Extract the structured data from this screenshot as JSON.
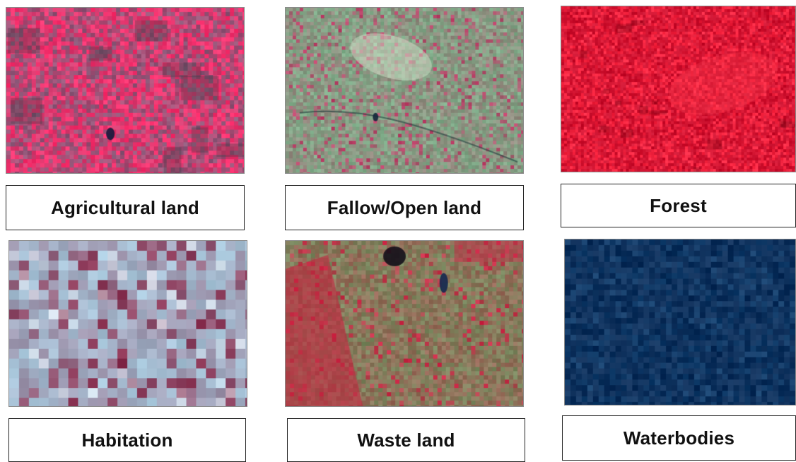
{
  "classes": [
    {
      "id": "agri",
      "label": "Agricultural land"
    },
    {
      "id": "fallow",
      "label": "Fallow/Open land"
    },
    {
      "id": "forest",
      "label": "Forest"
    },
    {
      "id": "habitation",
      "label": "Habitation"
    },
    {
      "id": "waste",
      "label": "Waste land"
    },
    {
      "id": "water",
      "label": "Waterbodies"
    }
  ],
  "colors": {
    "agri_base": "#8a5a7a",
    "agri_accent": "#ff2f6e",
    "fallow_base": "#7fae8a",
    "fallow_accent": "#c0406a",
    "forest_base": "#c8102e",
    "forest_accent": "#ff2a45",
    "habitation_base": "#a8c8dc",
    "habitation_accent": "#8a3050",
    "waste_base": "#7a8a60",
    "waste_accent": "#d02848",
    "water_base": "#0e2f5a",
    "water_accent": "#14406e"
  }
}
